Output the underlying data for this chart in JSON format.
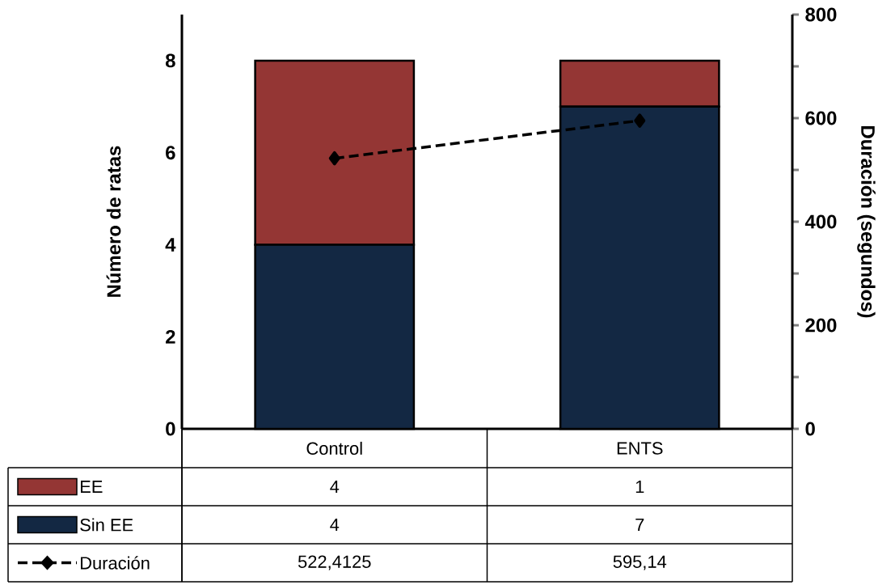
{
  "chart_data": {
    "type": "bar",
    "stacked": true,
    "categories": [
      "Control",
      "ENTS"
    ],
    "series": [
      {
        "name": "Sin EE",
        "color": "#132843",
        "values": [
          4,
          7
        ],
        "value_labels": [
          "4",
          "7"
        ]
      },
      {
        "name": "EE",
        "color": "#943634",
        "values": [
          4,
          1
        ],
        "value_labels": [
          "4",
          "1"
        ]
      },
      {
        "name": "Duración",
        "type": "line",
        "axis": "y2",
        "color": "#000000",
        "line_style": "dashed",
        "marker": "diamond",
        "values": [
          522.4125,
          595.14
        ],
        "value_labels": [
          "522,4125",
          "595,14"
        ]
      }
    ],
    "ylabel": "Número de ratas",
    "y2label": "Duración (segundos)",
    "ylim": [
      0,
      9
    ],
    "yticks": [
      0,
      2,
      4,
      6,
      8
    ],
    "y2lim": [
      0,
      800
    ],
    "y2ticks": [
      0,
      {
        "value": 100,
        "label": null
      },
      200,
      {
        "value": 300,
        "label": null
      },
      400,
      {
        "value": 500,
        "label": null
      },
      600,
      {
        "value": 700,
        "label": null
      },
      800
    ],
    "legend": "bottom"
  }
}
